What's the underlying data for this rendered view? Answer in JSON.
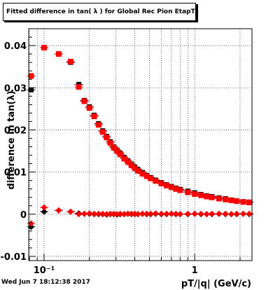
{
  "chart_data": {
    "type": "scatter",
    "title": "Fitted difference in tan( λ ) for Global Rec Pion EtapT",
    "xlabel": "pT/|q| (GeV/c)",
    "ylabel": "difference in tan(λ)",
    "xscale": "log",
    "xlim": [
      0.079,
      2.4
    ],
    "ylim": [
      -0.011,
      0.044
    ],
    "x_ticks": [
      {
        "value": 0.1,
        "label": "10⁻¹"
      },
      {
        "value": 1,
        "label": "1"
      }
    ],
    "y_ticks": [
      {
        "value": -0.01,
        "label": "-0.01"
      },
      {
        "value": 0,
        "label": "0"
      },
      {
        "value": 0.01,
        "label": "0.01"
      },
      {
        "value": 0.02,
        "label": "0.02"
      },
      {
        "value": 0.03,
        "label": "0.03"
      },
      {
        "value": 0.04,
        "label": "0.04"
      }
    ],
    "grid": true,
    "colors": {
      "black_series": "#000000",
      "red_series": "#ff0000"
    },
    "series": [
      {
        "marker": "square",
        "color": "#000000",
        "x": [
          0.082,
          0.1,
          0.125,
          0.15,
          0.17,
          0.185,
          0.2,
          0.215,
          0.23,
          0.245,
          0.26,
          0.275,
          0.29,
          0.305,
          0.32,
          0.34,
          0.36,
          0.38,
          0.4,
          0.42,
          0.45,
          0.48,
          0.51,
          0.55,
          0.6,
          0.65,
          0.7,
          0.75,
          0.8,
          0.9,
          1.0,
          1.1,
          1.2,
          1.3,
          1.45,
          1.6,
          1.75,
          1.9,
          2.1,
          2.3
        ],
        "y": [
          0.0295,
          0.0395,
          0.038,
          0.036,
          0.0308,
          0.027,
          0.0255,
          0.0235,
          0.0215,
          0.0198,
          0.0185,
          0.0172,
          0.016,
          0.0152,
          0.0145,
          0.0135,
          0.0127,
          0.0119,
          0.0112,
          0.0106,
          0.0099,
          0.0092,
          0.0087,
          0.0081,
          0.0075,
          0.007,
          0.0066,
          0.0062,
          0.0059,
          0.0055,
          0.0051,
          0.0047,
          0.0044,
          0.0042,
          0.0039,
          0.0037,
          0.0034,
          0.0032,
          0.003,
          0.0029
        ]
      },
      {
        "marker": "square",
        "color": "#ff0000",
        "x": [
          0.082,
          0.1,
          0.125,
          0.15,
          0.17,
          0.185,
          0.2,
          0.215,
          0.23,
          0.245,
          0.26,
          0.275,
          0.29,
          0.305,
          0.32,
          0.34,
          0.36,
          0.38,
          0.4,
          0.42,
          0.45,
          0.48,
          0.51,
          0.55,
          0.6,
          0.65,
          0.7,
          0.75,
          0.8,
          0.9,
          1.0,
          1.1,
          1.2,
          1.3,
          1.45,
          1.6,
          1.75,
          1.9,
          2.1,
          2.3
        ],
        "y": [
          0.0328,
          0.0395,
          0.038,
          0.0362,
          0.0302,
          0.0268,
          0.0252,
          0.0232,
          0.0212,
          0.0195,
          0.0182,
          0.0169,
          0.0158,
          0.015,
          0.0142,
          0.0132,
          0.0124,
          0.0116,
          0.0109,
          0.0103,
          0.0096,
          0.009,
          0.0085,
          0.0079,
          0.0073,
          0.0068,
          0.0064,
          0.006,
          0.0057,
          0.0052,
          0.0048,
          0.0045,
          0.0042,
          0.004,
          0.0037,
          0.0035,
          0.0033,
          0.0031,
          0.0029,
          0.0028
        ]
      },
      {
        "marker": "diamond",
        "color": "#000000",
        "x": [
          0.082,
          0.1,
          0.125,
          0.15,
          0.17,
          0.185,
          0.2,
          0.215,
          0.23,
          0.245,
          0.26,
          0.275,
          0.29,
          0.305,
          0.32,
          0.34,
          0.36,
          0.38,
          0.4,
          0.42,
          0.45,
          0.48,
          0.51,
          0.55,
          0.6,
          0.65,
          0.7,
          0.75,
          0.8,
          0.9,
          1.0,
          1.1,
          1.2,
          1.3,
          1.45,
          1.6,
          1.75,
          1.9,
          2.1,
          2.3
        ],
        "y": [
          -0.003,
          0.0006,
          0.0009,
          0.0006,
          0.0002,
          0.0001,
          0.0001,
          0.0,
          0.0,
          0.0,
          -0.0001,
          0.0,
          0.0,
          -0.0001,
          0.0,
          0.0,
          0.0001,
          0.0,
          0.0,
          0.0,
          0.0001,
          0.0,
          0.0,
          0.0001,
          0.0,
          0.0,
          0.0001,
          0.0,
          0.0,
          0.0,
          0.0001,
          0.0,
          0.0,
          0.0,
          0.0001,
          0.0,
          0.0,
          0.0,
          0.0001,
          0.0
        ]
      },
      {
        "marker": "diamond",
        "color": "#ff0000",
        "x": [
          0.082,
          0.1,
          0.125,
          0.15,
          0.17,
          0.185,
          0.2,
          0.215,
          0.23,
          0.245,
          0.26,
          0.275,
          0.29,
          0.305,
          0.32,
          0.34,
          0.36,
          0.38,
          0.4,
          0.42,
          0.45,
          0.48,
          0.51,
          0.55,
          0.6,
          0.65,
          0.7,
          0.75,
          0.8,
          0.9,
          1.0,
          1.1,
          1.2,
          1.3,
          1.45,
          1.6,
          1.75,
          1.9,
          2.1,
          2.3
        ],
        "y": [
          -0.0022,
          0.0016,
          0.0009,
          0.0006,
          0.0,
          0.0001,
          0.0002,
          0.0001,
          0.0001,
          0.0001,
          0.0,
          0.0001,
          0.0001,
          0.0,
          0.0001,
          0.0,
          0.0001,
          0.0001,
          0.0001,
          0.0,
          0.0001,
          0.0001,
          0.0001,
          0.0002,
          0.0001,
          0.0001,
          0.0001,
          0.0001,
          0.0,
          0.0001,
          0.0001,
          0.0001,
          0.0,
          0.0001,
          0.0001,
          0.0001,
          0.0,
          0.0001,
          0.0001,
          0.0001
        ]
      }
    ]
  },
  "timestamp": "Wed Jun  7 18:12:38 2017"
}
